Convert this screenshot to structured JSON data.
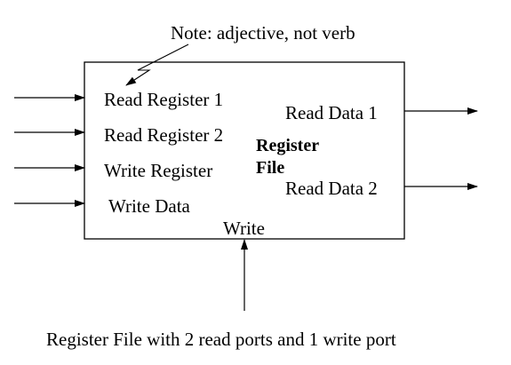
{
  "note": "Note: adjective, not verb",
  "block": {
    "title_line1": "Register",
    "title_line2": "File"
  },
  "inputs": {
    "read_register_1": "Read Register 1",
    "read_register_2": "Read Register  2",
    "write_register": "Write Register",
    "write_data": "Write Data"
  },
  "outputs": {
    "read_data_1": "Read Data 1",
    "read_data_2": "Read Data 2"
  },
  "control": {
    "write": "Write"
  },
  "caption": "Register File with 2 read ports and 1 write port"
}
